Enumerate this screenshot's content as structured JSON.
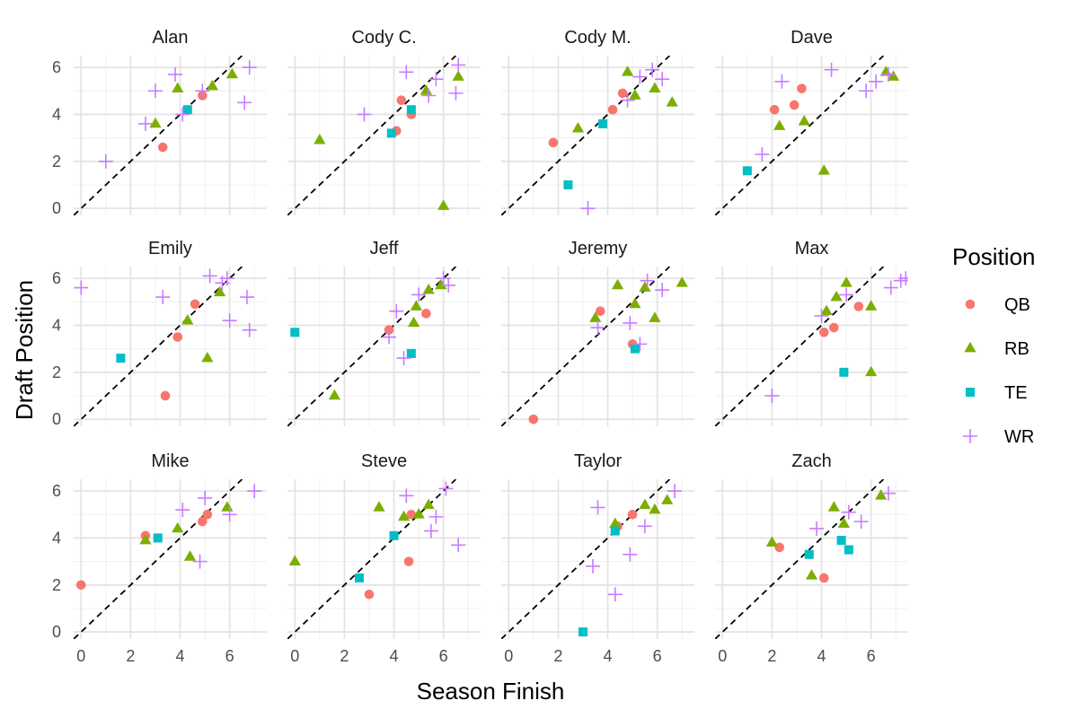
{
  "chart_data": {
    "type": "scatter",
    "xlabel": "Season Finish",
    "ylabel": "Draft Position",
    "xlim": [
      -0.3,
      7.5
    ],
    "ylim": [
      -0.3,
      6.5
    ],
    "x_ticks": [
      0,
      2,
      4,
      6
    ],
    "y_ticks": [
      0,
      2,
      4,
      6
    ],
    "grid": true,
    "reference_line": "y = x (dashed)",
    "legend": {
      "title": "Position",
      "placement": "right",
      "entries": [
        {
          "name": "QB",
          "color": "#F8766D",
          "shape": "circle"
        },
        {
          "name": "RB",
          "color": "#7CAE00",
          "shape": "triangle"
        },
        {
          "name": "TE",
          "color": "#00BFC4",
          "shape": "square"
        },
        {
          "name": "WR",
          "color": "#C77CFF",
          "shape": "plus"
        }
      ]
    },
    "panels": [
      {
        "title": "Alan",
        "points": [
          [
            3.3,
            2.6,
            "QB"
          ],
          [
            4.9,
            4.8,
            "QB"
          ],
          [
            3.0,
            3.6,
            "RB"
          ],
          [
            3.9,
            5.1,
            "RB"
          ],
          [
            5.3,
            5.2,
            "RB"
          ],
          [
            6.1,
            5.7,
            "RB"
          ],
          [
            4.3,
            4.2,
            "TE"
          ],
          [
            1.0,
            2.0,
            "WR"
          ],
          [
            2.6,
            3.6,
            "WR"
          ],
          [
            3.0,
            5.0,
            "WR"
          ],
          [
            3.8,
            5.7,
            "WR"
          ],
          [
            4.1,
            4.0,
            "WR"
          ],
          [
            4.9,
            5.0,
            "WR"
          ],
          [
            6.6,
            4.5,
            "WR"
          ],
          [
            6.8,
            6.0,
            "WR"
          ]
        ]
      },
      {
        "title": "Cody C.",
        "points": [
          [
            4.1,
            3.3,
            "QB"
          ],
          [
            4.3,
            4.6,
            "QB"
          ],
          [
            4.7,
            4.0,
            "QB"
          ],
          [
            1.0,
            2.9,
            "RB"
          ],
          [
            5.3,
            5.0,
            "RB"
          ],
          [
            6.0,
            0.1,
            "RB"
          ],
          [
            6.6,
            5.6,
            "RB"
          ],
          [
            3.9,
            3.2,
            "TE"
          ],
          [
            4.7,
            4.2,
            "TE"
          ],
          [
            2.8,
            4.0,
            "WR"
          ],
          [
            4.5,
            5.8,
            "WR"
          ],
          [
            5.4,
            4.8,
            "WR"
          ],
          [
            5.7,
            5.5,
            "WR"
          ],
          [
            6.5,
            4.9,
            "WR"
          ],
          [
            6.6,
            6.1,
            "WR"
          ]
        ]
      },
      {
        "title": "Cody M.",
        "points": [
          [
            1.8,
            2.8,
            "QB"
          ],
          [
            4.2,
            4.2,
            "QB"
          ],
          [
            4.6,
            4.9,
            "QB"
          ],
          [
            2.8,
            3.4,
            "RB"
          ],
          [
            4.8,
            5.8,
            "RB"
          ],
          [
            5.1,
            4.8,
            "RB"
          ],
          [
            5.9,
            5.1,
            "RB"
          ],
          [
            6.6,
            4.5,
            "RB"
          ],
          [
            2.4,
            1.0,
            "TE"
          ],
          [
            3.8,
            3.6,
            "TE"
          ],
          [
            3.2,
            0.0,
            "WR"
          ],
          [
            4.8,
            4.6,
            "WR"
          ],
          [
            5.3,
            5.6,
            "WR"
          ],
          [
            5.8,
            5.9,
            "WR"
          ],
          [
            6.2,
            5.5,
            "WR"
          ]
        ]
      },
      {
        "title": "Dave",
        "points": [
          [
            2.1,
            4.2,
            "QB"
          ],
          [
            2.9,
            4.4,
            "QB"
          ],
          [
            3.2,
            5.1,
            "QB"
          ],
          [
            2.3,
            3.5,
            "RB"
          ],
          [
            3.3,
            3.7,
            "RB"
          ],
          [
            4.1,
            1.6,
            "RB"
          ],
          [
            6.6,
            5.8,
            "RB"
          ],
          [
            6.9,
            5.6,
            "RB"
          ],
          [
            1.0,
            1.6,
            "TE"
          ],
          [
            1.6,
            2.3,
            "WR"
          ],
          [
            2.4,
            5.4,
            "WR"
          ],
          [
            4.4,
            5.9,
            "WR"
          ],
          [
            5.8,
            5.0,
            "WR"
          ],
          [
            6.2,
            5.4,
            "WR"
          ],
          [
            6.7,
            5.7,
            "WR"
          ]
        ]
      },
      {
        "title": "Emily",
        "points": [
          [
            3.4,
            1.0,
            "QB"
          ],
          [
            3.9,
            3.5,
            "QB"
          ],
          [
            4.6,
            4.9,
            "QB"
          ],
          [
            4.3,
            4.2,
            "RB"
          ],
          [
            5.1,
            2.6,
            "RB"
          ],
          [
            5.6,
            5.4,
            "RB"
          ],
          [
            1.6,
            2.6,
            "TE"
          ],
          [
            0.0,
            5.6,
            "WR"
          ],
          [
            3.3,
            5.2,
            "WR"
          ],
          [
            5.2,
            6.1,
            "WR"
          ],
          [
            5.7,
            5.8,
            "WR"
          ],
          [
            5.9,
            6.0,
            "WR"
          ],
          [
            6.0,
            4.2,
            "WR"
          ],
          [
            6.7,
            5.2,
            "WR"
          ],
          [
            6.8,
            3.8,
            "WR"
          ]
        ]
      },
      {
        "title": "Jeff",
        "points": [
          [
            3.8,
            3.8,
            "QB"
          ],
          [
            5.3,
            4.5,
            "QB"
          ],
          [
            1.6,
            1.0,
            "RB"
          ],
          [
            4.8,
            4.1,
            "RB"
          ],
          [
            4.9,
            4.8,
            "RB"
          ],
          [
            5.4,
            5.5,
            "RB"
          ],
          [
            5.9,
            5.7,
            "RB"
          ],
          [
            0.0,
            3.7,
            "TE"
          ],
          [
            4.7,
            2.8,
            "TE"
          ],
          [
            3.8,
            3.5,
            "WR"
          ],
          [
            4.1,
            4.6,
            "WR"
          ],
          [
            4.4,
            2.6,
            "WR"
          ],
          [
            5.0,
            5.3,
            "WR"
          ],
          [
            6.0,
            6.0,
            "WR"
          ],
          [
            6.2,
            5.7,
            "WR"
          ]
        ]
      },
      {
        "title": "Jeremy",
        "points": [
          [
            1.0,
            0.0,
            "QB"
          ],
          [
            3.7,
            4.6,
            "QB"
          ],
          [
            5.0,
            3.2,
            "QB"
          ],
          [
            3.5,
            4.3,
            "RB"
          ],
          [
            4.4,
            5.7,
            "RB"
          ],
          [
            5.1,
            4.9,
            "RB"
          ],
          [
            5.5,
            5.6,
            "RB"
          ],
          [
            5.9,
            4.3,
            "RB"
          ],
          [
            7.0,
            5.8,
            "RB"
          ],
          [
            5.1,
            3.0,
            "TE"
          ],
          [
            3.6,
            3.9,
            "WR"
          ],
          [
            4.9,
            4.1,
            "WR"
          ],
          [
            5.3,
            3.2,
            "WR"
          ],
          [
            5.6,
            5.9,
            "WR"
          ],
          [
            6.2,
            5.5,
            "WR"
          ]
        ]
      },
      {
        "title": "Max",
        "points": [
          [
            4.1,
            3.7,
            "QB"
          ],
          [
            4.5,
            3.9,
            "QB"
          ],
          [
            5.5,
            4.8,
            "QB"
          ],
          [
            4.2,
            4.6,
            "RB"
          ],
          [
            4.6,
            5.2,
            "RB"
          ],
          [
            5.0,
            5.8,
            "RB"
          ],
          [
            6.0,
            4.8,
            "RB"
          ],
          [
            6.0,
            2.0,
            "RB"
          ],
          [
            4.9,
            2.0,
            "TE"
          ],
          [
            2.0,
            1.0,
            "WR"
          ],
          [
            4.0,
            4.4,
            "WR"
          ],
          [
            5.0,
            5.3,
            "WR"
          ],
          [
            6.8,
            5.6,
            "WR"
          ],
          [
            7.2,
            5.9,
            "WR"
          ],
          [
            7.4,
            6.0,
            "WR"
          ]
        ]
      },
      {
        "title": "Mike",
        "points": [
          [
            0.0,
            2.0,
            "QB"
          ],
          [
            2.6,
            4.1,
            "QB"
          ],
          [
            4.9,
            4.7,
            "QB"
          ],
          [
            5.1,
            5.0,
            "QB"
          ],
          [
            2.6,
            3.9,
            "RB"
          ],
          [
            3.9,
            4.4,
            "RB"
          ],
          [
            4.4,
            3.2,
            "RB"
          ],
          [
            5.9,
            5.3,
            "RB"
          ],
          [
            3.1,
            4.0,
            "TE"
          ],
          [
            4.1,
            5.2,
            "WR"
          ],
          [
            4.8,
            3.0,
            "WR"
          ],
          [
            5.0,
            5.7,
            "WR"
          ],
          [
            6.0,
            5.0,
            "WR"
          ],
          [
            7.0,
            6.0,
            "WR"
          ]
        ]
      },
      {
        "title": "Steve",
        "points": [
          [
            3.0,
            1.6,
            "QB"
          ],
          [
            4.6,
            3.0,
            "QB"
          ],
          [
            4.7,
            5.0,
            "QB"
          ],
          [
            0.0,
            3.0,
            "RB"
          ],
          [
            3.4,
            5.3,
            "RB"
          ],
          [
            4.4,
            4.9,
            "RB"
          ],
          [
            5.0,
            5.0,
            "RB"
          ],
          [
            5.4,
            5.4,
            "RB"
          ],
          [
            2.6,
            2.3,
            "TE"
          ],
          [
            4.0,
            4.1,
            "TE"
          ],
          [
            4.5,
            5.8,
            "WR"
          ],
          [
            5.5,
            4.3,
            "WR"
          ],
          [
            5.7,
            4.9,
            "WR"
          ],
          [
            6.1,
            6.1,
            "WR"
          ],
          [
            6.6,
            3.7,
            "WR"
          ]
        ]
      },
      {
        "title": "Taylor",
        "points": [
          [
            4.4,
            4.5,
            "QB"
          ],
          [
            5.0,
            5.0,
            "QB"
          ],
          [
            4.3,
            4.6,
            "RB"
          ],
          [
            5.5,
            5.4,
            "RB"
          ],
          [
            5.9,
            5.2,
            "RB"
          ],
          [
            6.4,
            5.6,
            "RB"
          ],
          [
            3.0,
            0.0,
            "TE"
          ],
          [
            4.3,
            4.3,
            "TE"
          ],
          [
            3.4,
            2.8,
            "WR"
          ],
          [
            3.6,
            5.3,
            "WR"
          ],
          [
            4.3,
            1.6,
            "WR"
          ],
          [
            4.9,
            3.3,
            "WR"
          ],
          [
            5.5,
            4.5,
            "WR"
          ],
          [
            6.7,
            6.0,
            "WR"
          ]
        ]
      },
      {
        "title": "Zach",
        "points": [
          [
            2.3,
            3.6,
            "QB"
          ],
          [
            4.1,
            2.3,
            "QB"
          ],
          [
            2.0,
            3.8,
            "RB"
          ],
          [
            3.6,
            2.4,
            "RB"
          ],
          [
            4.5,
            5.3,
            "RB"
          ],
          [
            4.9,
            4.6,
            "RB"
          ],
          [
            6.4,
            5.8,
            "RB"
          ],
          [
            3.5,
            3.3,
            "TE"
          ],
          [
            4.8,
            3.9,
            "TE"
          ],
          [
            5.1,
            3.5,
            "TE"
          ],
          [
            3.8,
            4.4,
            "WR"
          ],
          [
            5.1,
            5.1,
            "WR"
          ],
          [
            5.6,
            4.7,
            "WR"
          ],
          [
            6.7,
            5.9,
            "WR"
          ]
        ]
      }
    ]
  }
}
